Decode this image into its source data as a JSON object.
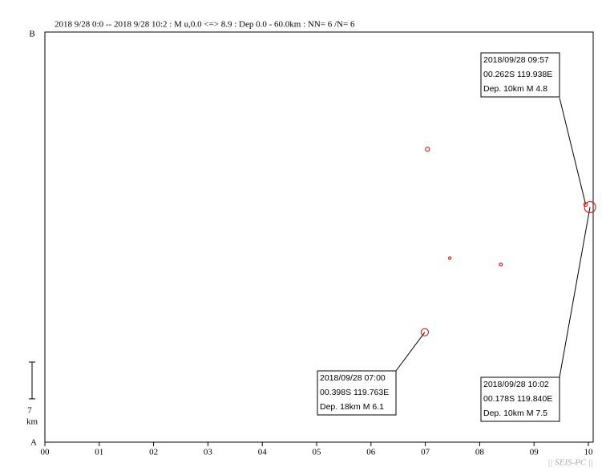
{
  "chart_data": {
    "type": "scatter",
    "title": "2018 9/28 0:0 -- 2018 9/28 10:2  : M u,0.0 <=> 8.9   :  Dep 0.0 - 60.0km  :  NN= 6 /N= 6",
    "y_top_label": "B",
    "y_bottom_label": "A",
    "scale_bar": {
      "value": 7,
      "unit": "km"
    },
    "footer": "|| SEIS-PC ||",
    "color": "#dd0000",
    "x": [
      7.04,
      7.45,
      8.39,
      6.99,
      9.95,
      10.03
    ],
    "y": [
      55.7,
      35.0,
      33.8,
      20.9,
      45.2,
      44.7
    ],
    "sizes": [
      5.0,
      4.3,
      4.6,
      6.1,
      4.8,
      7.5
    ],
    "xlim": [
      0,
      10
    ],
    "ylim": [
      0,
      78
    ],
    "xticks": [
      {
        "value": 0,
        "label": "00"
      },
      {
        "value": 1,
        "label": "01"
      },
      {
        "value": 2,
        "label": "02"
      },
      {
        "value": 3,
        "label": "03"
      },
      {
        "value": 4,
        "label": "04"
      },
      {
        "value": 5,
        "label": "05"
      },
      {
        "value": 6,
        "label": "06"
      },
      {
        "value": 7,
        "label": "07"
      },
      {
        "value": 8,
        "label": "08"
      },
      {
        "value": 9,
        "label": "09"
      },
      10
    ],
    "annotations": [
      [
        "2018/09/28 09:57",
        "00.262S  119.938E",
        "Dep. 10km    M 4.8"
      ],
      [
        "2018/09/28 07:00",
        "00.398S  119.763E",
        "Dep. 18km    M 6.1"
      ],
      [
        "2018/09/28 10:02",
        "00.178S  119.840E",
        "Dep. 10km    M 7.5"
      ]
    ]
  }
}
